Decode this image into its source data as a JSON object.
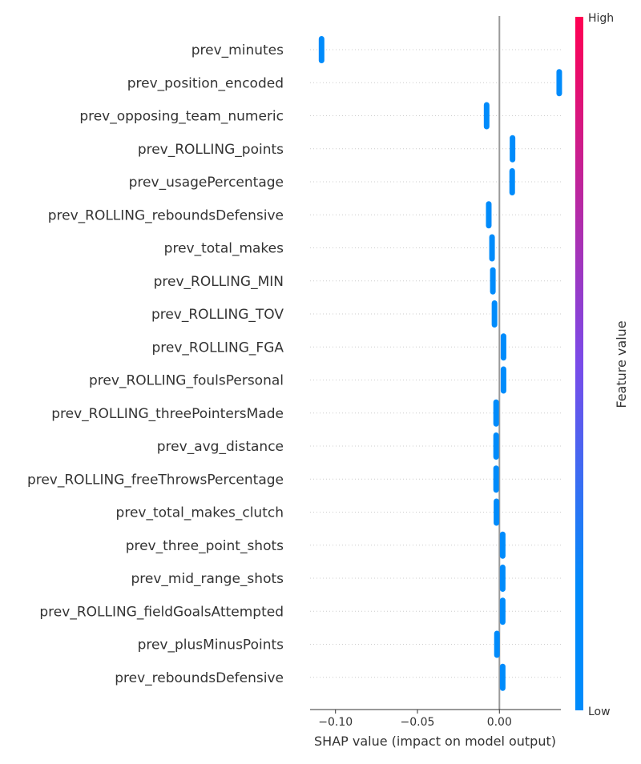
{
  "chart_data": {
    "type": "scatter",
    "subtype": "shap-beeswarm",
    "xlabel": "SHAP value (impact on model output)",
    "xlim": [
      -0.1155,
      0.0375
    ],
    "xticks": [
      {
        "value": -0.1,
        "label": "−0.10"
      },
      {
        "value": -0.05,
        "label": "−0.05"
      },
      {
        "value": 0.0,
        "label": "0.00"
      }
    ],
    "features": [
      {
        "name": "prev_minutes",
        "shap": -0.1085
      },
      {
        "name": "prev_position_encoded",
        "shap": 0.0365
      },
      {
        "name": "prev_opposing_team_numeric",
        "shap": -0.0078
      },
      {
        "name": "prev_ROLLING_points",
        "shap": 0.008
      },
      {
        "name": "prev_usagePercentage",
        "shap": 0.0078
      },
      {
        "name": "prev_ROLLING_reboundsDefensive",
        "shap": -0.0065
      },
      {
        "name": "prev_total_makes",
        "shap": -0.0045
      },
      {
        "name": "prev_ROLLING_MIN",
        "shap": -0.004
      },
      {
        "name": "prev_ROLLING_TOV",
        "shap": -0.003
      },
      {
        "name": "prev_ROLLING_FGA",
        "shap": 0.0025
      },
      {
        "name": "prev_ROLLING_foulsPersonal",
        "shap": 0.0025
      },
      {
        "name": "prev_ROLLING_threePointersMade",
        "shap": -0.002
      },
      {
        "name": "prev_avg_distance",
        "shap": -0.002
      },
      {
        "name": "prev_ROLLING_freeThrowsPercentage",
        "shap": -0.002
      },
      {
        "name": "prev_total_makes_clutch",
        "shap": -0.0018
      },
      {
        "name": "prev_three_point_shots",
        "shap": 0.002
      },
      {
        "name": "prev_mid_range_shots",
        "shap": 0.002
      },
      {
        "name": "prev_ROLLING_fieldGoalsAttempted",
        "shap": 0.002
      },
      {
        "name": "prev_plusMinusPoints",
        "shap": -0.0015
      },
      {
        "name": "prev_reboundsDefensive",
        "shap": 0.002
      }
    ],
    "colorbar": {
      "label": "Feature value",
      "high_label": "High",
      "low_label": "Low",
      "high_color": "#ff0052",
      "low_color": "#008bfb"
    },
    "point_color": "#008bfb",
    "zero_line_color": "#999999",
    "grid_color": "#cccccc",
    "grid": "dotted horizontal",
    "legend": "colorbar right"
  }
}
